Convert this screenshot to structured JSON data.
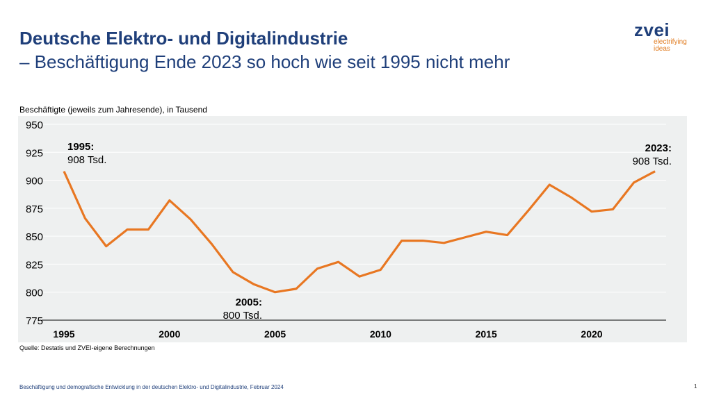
{
  "title": "Deutsche Elektro- und Digitalindustrie",
  "subtitle": "– Beschäftigung Ende 2023 so hoch wie seit 1995 nicht mehr",
  "logo": {
    "name": "zvei",
    "slogan1": "electrifying",
    "slogan2": "ideas"
  },
  "footer": "Beschäftigung und demografische Entwicklung in der deutschen Elektro- und Digitalindustrie, Februar 2024",
  "page_number": "1",
  "colors": {
    "line": "#e87722",
    "title": "#1f3f7a",
    "plot_bg": "#eef0f0"
  },
  "chart_data": {
    "type": "line",
    "ylabel": "Beschäftigte (jeweils zum Jahresende), in Tausend",
    "source": "Quelle: Destatis und ZVEI-eigene Berechnungen",
    "ylim": [
      775,
      950
    ],
    "yticks": [
      "950",
      "925",
      "900",
      "875",
      "850",
      "825",
      "800",
      "775"
    ],
    "xticks": [
      "1995",
      "2000",
      "2005",
      "2010",
      "2015",
      "2020"
    ],
    "grid": true,
    "x": [
      1995,
      1996,
      1997,
      1998,
      1999,
      2000,
      2001,
      2002,
      2003,
      2004,
      2005,
      2006,
      2007,
      2008,
      2009,
      2010,
      2011,
      2012,
      2013,
      2014,
      2015,
      2016,
      2017,
      2018,
      2019,
      2020,
      2021,
      2022,
      2023
    ],
    "values": [
      908,
      866,
      841,
      856,
      856,
      882,
      865,
      843,
      818,
      807,
      800,
      803,
      821,
      827,
      814,
      820,
      846,
      846,
      844,
      849,
      854,
      851,
      873,
      896,
      885,
      872,
      874,
      898,
      908
    ],
    "annotations": [
      {
        "year_label": "1995:",
        "value_label": "908 Tsd."
      },
      {
        "year_label": "2005:",
        "value_label": "800 Tsd."
      },
      {
        "year_label": "2023:",
        "value_label": "908 Tsd."
      }
    ]
  }
}
